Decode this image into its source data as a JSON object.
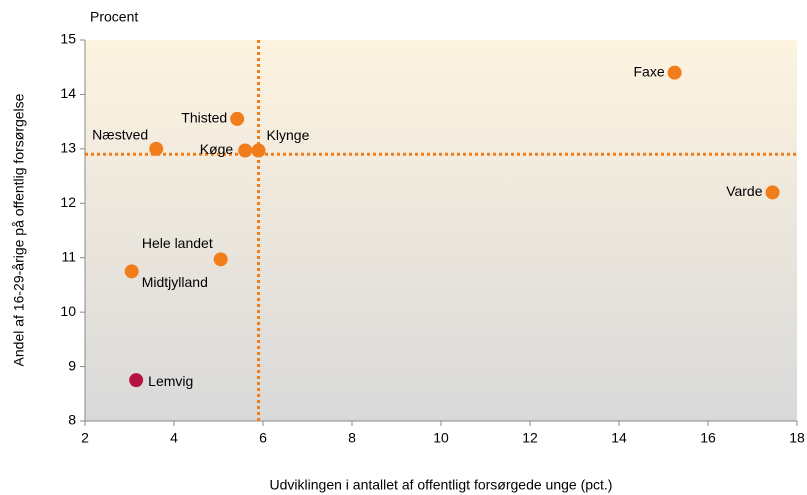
{
  "chart_data": {
    "type": "scatter",
    "unit_label": "Procent",
    "xlabel": "Udviklingen i antallet af offentligt forsørgede unge (pct.)",
    "ylabel": "Andel af 16-29-årige på offentlig forsørgelse",
    "labels": [
      "Faxe",
      "Varde",
      "Thisted",
      "Næstved",
      "Køge",
      "Klynge",
      "Hele landet",
      "Midtjylland",
      "Lemvig"
    ],
    "x": [
      15.25,
      17.45,
      5.42,
      3.6,
      5.6,
      5.9,
      5.05,
      3.05,
      3.15
    ],
    "values": [
      14.4,
      12.2,
      13.55,
      13.0,
      12.97,
      12.97,
      10.97,
      10.75,
      8.75
    ],
    "colors": [
      "#f07d1a",
      "#f07d1a",
      "#f07d1a",
      "#f07d1a",
      "#f07d1a",
      "#f07d1a",
      "#f07d1a",
      "#f07d1a",
      "#b5123f"
    ],
    "reference_lines": {
      "x": 5.9,
      "y": 12.9,
      "color": "#f07d1a"
    },
    "xlim": [
      2,
      18
    ],
    "xticks": [
      2,
      4,
      6,
      8,
      10,
      12,
      14,
      16,
      18
    ],
    "ylim": [
      8,
      15
    ],
    "yticks": [
      8,
      9,
      10,
      11,
      12,
      13,
      14,
      15
    ],
    "grid": false
  }
}
